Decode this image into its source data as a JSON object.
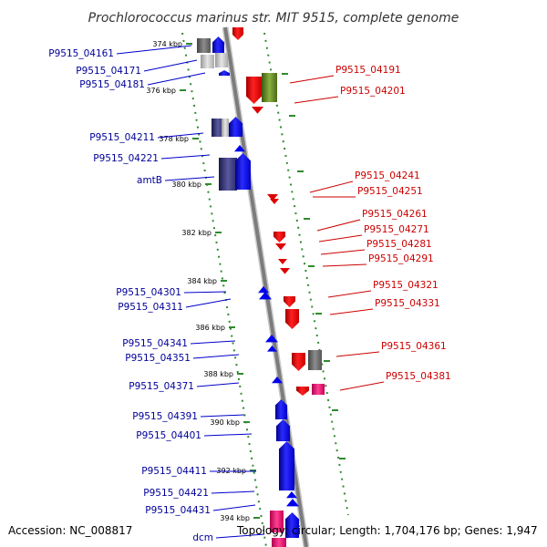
{
  "title": "Prochlorococcus marinus str. MIT 9515, complete genome",
  "footer": {
    "accession": "Accession: NC_008817",
    "topology": "Topology: circular; Length: 1,704,176 bp; Genes: 1,947"
  },
  "colors": {
    "backbone": "#8a8a8a",
    "grid": "#2e8b2e",
    "left_label": "#000099",
    "right_label": "#cc0000",
    "forward_gene": "#0000ee",
    "reverse_gene": "#dd0000"
  },
  "ticks": [
    "374 kbp",
    "376 kbp",
    "378 kbp",
    "380 kbp",
    "382 kbp",
    "384 kbp",
    "386 kbp",
    "388 kbp",
    "390 kbp",
    "392 kbp",
    "394 kbp"
  ],
  "left_genes": [
    "P9515_04161",
    "P9515_04171",
    "P9515_04181",
    "P9515_04211",
    "P9515_04221",
    "amtB",
    "P9515_04301",
    "P9515_04311",
    "P9515_04341",
    "P9515_04351",
    "P9515_04371",
    "P9515_04391",
    "P9515_04401",
    "P9515_04411",
    "P9515_04421",
    "P9515_04431",
    "dcm"
  ],
  "right_genes": [
    "P9515_04191",
    "P9515_04201",
    "P9515_04241",
    "P9515_04251",
    "P9515_04261",
    "P9515_04271",
    "P9515_04281",
    "P9515_04291",
    "P9515_04321",
    "P9515_04331",
    "P9515_04361",
    "P9515_04381"
  ]
}
